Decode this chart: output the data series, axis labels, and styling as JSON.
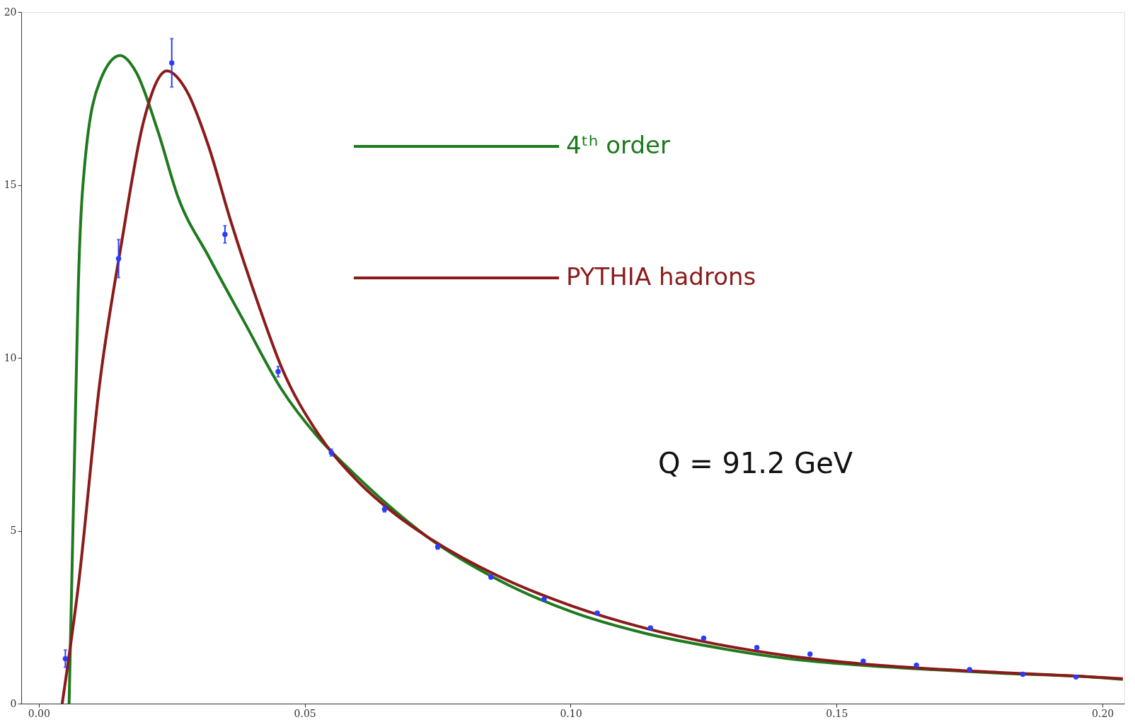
{
  "chart_data": {
    "type": "line",
    "xlim": [
      -0.0033,
      0.2041
    ],
    "ylim": [
      0,
      20
    ],
    "xticks": [
      {
        "value": 0,
        "label": "0.00"
      },
      {
        "value": 0.05,
        "label": "0.05"
      },
      {
        "value": 0.1,
        "label": "0.10"
      },
      {
        "value": 0.15,
        "label": "0.15"
      },
      {
        "value": 0.2,
        "label": "0.20"
      }
    ],
    "yticks": [
      0,
      5,
      10,
      15,
      20
    ],
    "grid": false,
    "legend": "top",
    "marker": "none",
    "line_style": "solid",
    "annotations": [
      "Q = 91.2 GeV"
    ],
    "series": [
      {
        "name": "4ᵗʰ order",
        "type": "line",
        "color": "#1e7a1e",
        "x": [
          0.0057,
          0.0067,
          0.0074,
          0.0087,
          0.0115,
          0.0153,
          0.0183,
          0.0224,
          0.0262,
          0.0319,
          0.0387,
          0.0456,
          0.0524,
          0.0592,
          0.066,
          0.0728,
          0.0865,
          0.1001,
          0.1138,
          0.1274,
          0.141,
          0.1547,
          0.1683,
          0.182,
          0.1956,
          0.2038
        ],
        "values": [
          0,
          7.0,
          11.9,
          15.7,
          18.0,
          18.74,
          18.26,
          16.55,
          14.64,
          12.94,
          11.02,
          9.1,
          7.72,
          6.66,
          5.7,
          4.85,
          3.57,
          2.66,
          2.04,
          1.62,
          1.3,
          1.11,
          0.98,
          0.87,
          0.79,
          0.7
        ]
      },
      {
        "name": "PYTHIA hadrons",
        "type": "line",
        "color": "#8b1a1a",
        "x": [
          0.0044,
          0.0074,
          0.0115,
          0.0156,
          0.0196,
          0.0241,
          0.0278,
          0.0319,
          0.036,
          0.0415,
          0.0456,
          0.0524,
          0.0592,
          0.066,
          0.0728,
          0.0865,
          0.1001,
          0.1138,
          0.1274,
          0.141,
          0.1547,
          0.1683,
          0.182,
          0.1956,
          0.2038
        ],
        "values": [
          0,
          3.36,
          9.32,
          13.36,
          16.77,
          18.3,
          17.72,
          16.13,
          14.0,
          11.45,
          9.74,
          7.83,
          6.55,
          5.6,
          4.85,
          3.68,
          2.83,
          2.19,
          1.72,
          1.38,
          1.15,
          1.0,
          0.89,
          0.79,
          0.72
        ]
      },
      {
        "type": "scatter",
        "marker": "circle",
        "color": "#2a3cff",
        "x": [
          0.005,
          0.015,
          0.025,
          0.035,
          0.045,
          0.055,
          0.065,
          0.075,
          0.085,
          0.095,
          0.105,
          0.115,
          0.125,
          0.135,
          0.145,
          0.155,
          0.165,
          0.175,
          0.185,
          0.195
        ],
        "values": [
          1.3,
          12.87,
          18.53,
          13.57,
          9.6,
          7.26,
          5.62,
          4.53,
          3.66,
          3.02,
          2.62,
          2.19,
          1.89,
          1.62,
          1.43,
          1.23,
          1.11,
          0.98,
          0.85,
          0.77
        ],
        "errors": [
          0.25,
          0.55,
          0.7,
          0.25,
          0.15,
          0.1,
          0.08,
          0.06,
          0.05,
          0.04,
          0.04,
          0.03,
          0.03,
          0.03,
          0.02,
          0.02,
          0.02,
          0.02,
          0.02,
          0.02
        ]
      }
    ]
  }
}
